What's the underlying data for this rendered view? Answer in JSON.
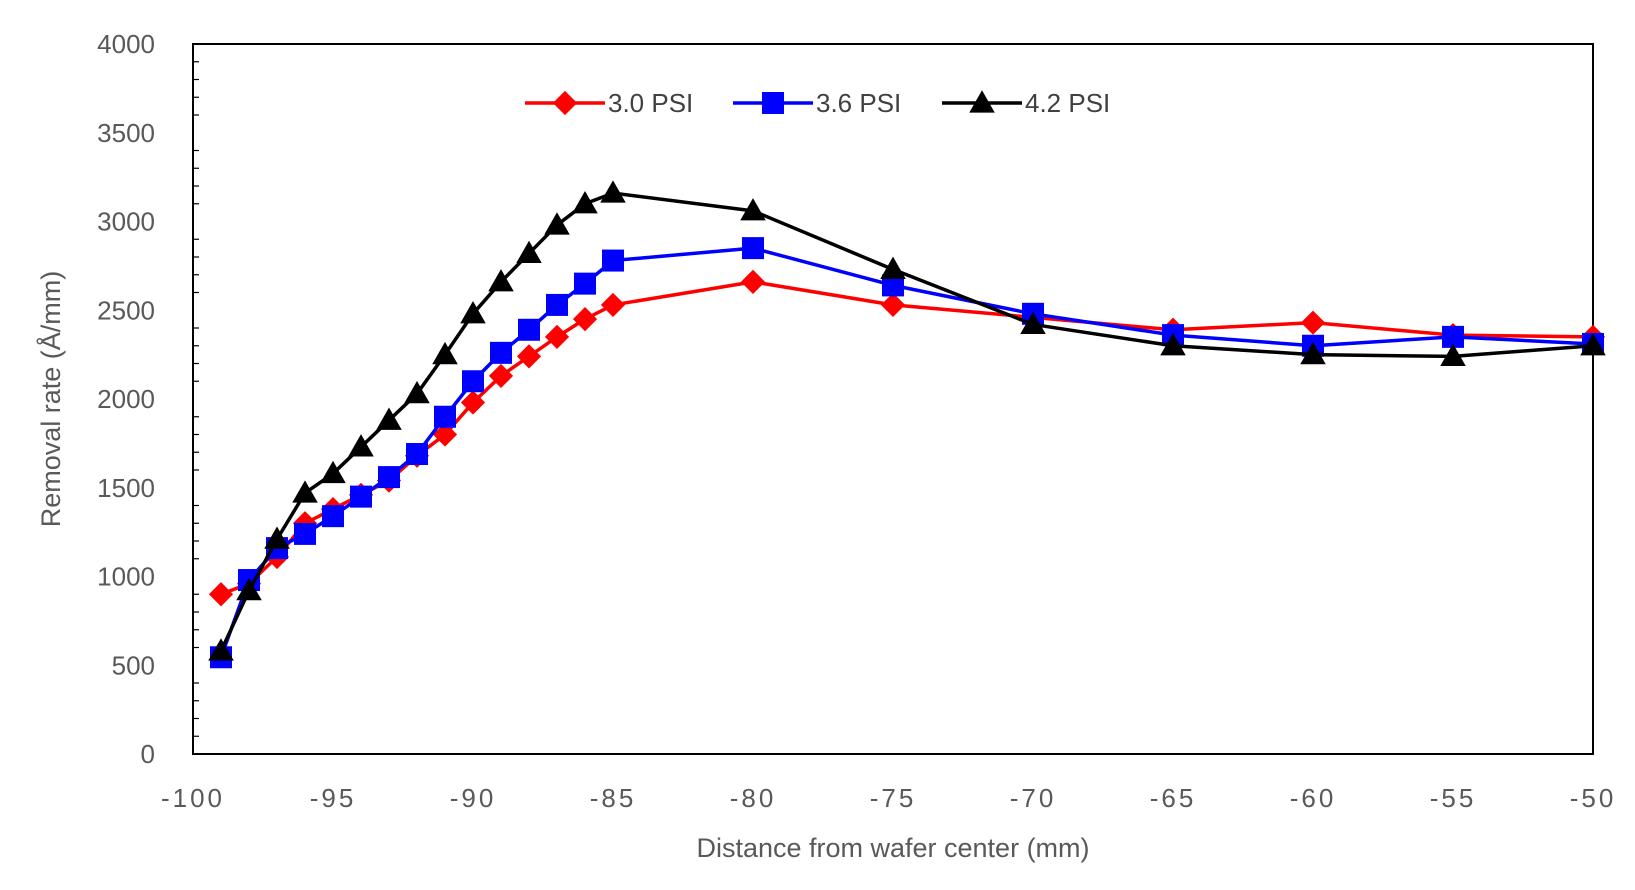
{
  "chart_data": {
    "type": "line",
    "title": "",
    "xlabel": "Distance from wafer center (mm)",
    "ylabel": "Removal rate (Å/mm)",
    "xlim": [
      -100,
      -50
    ],
    "ylim": [
      0,
      4000
    ],
    "x_ticks": [
      "-100",
      "-95",
      "-90",
      "-85",
      "-80",
      "-75",
      "-70",
      "-65",
      "-60",
      "-55",
      "-50"
    ],
    "y_ticks": [
      "0",
      "500",
      "1000",
      "1500",
      "2000",
      "2500",
      "3000",
      "3500",
      "4000"
    ],
    "x_tick_values": [
      -100,
      -95,
      -90,
      -85,
      -80,
      -75,
      -70,
      -65,
      -60,
      -55,
      -50
    ],
    "y_tick_values": [
      0,
      500,
      1000,
      1500,
      2000,
      2500,
      3000,
      3500,
      4000
    ],
    "grid": false,
    "legend_position": "top-center",
    "series": [
      {
        "name": "3.0 PSI",
        "color": "#ff0000",
        "marker": "diamond",
        "x": [
          -99,
          -98,
          -97,
          -96,
          -95,
          -94,
          -93,
          -92,
          -91,
          -90,
          -89,
          -88,
          -87,
          -86,
          -85,
          -80,
          -75,
          -70,
          -65,
          -60,
          -55,
          -50
        ],
        "y": [
          900,
          960,
          1110,
          1300,
          1380,
          1460,
          1540,
          1680,
          1800,
          1980,
          2130,
          2240,
          2350,
          2450,
          2530,
          2660,
          2530,
          2460,
          2390,
          2430,
          2360,
          2350
        ]
      },
      {
        "name": "3.6 PSI",
        "color": "#0000ff",
        "marker": "square",
        "x": [
          -99,
          -98,
          -97,
          -96,
          -95,
          -94,
          -93,
          -92,
          -91,
          -90,
          -89,
          -88,
          -87,
          -86,
          -85,
          -80,
          -75,
          -70,
          -65,
          -60,
          -55,
          -50
        ],
        "y": [
          545,
          980,
          1160,
          1240,
          1340,
          1450,
          1560,
          1690,
          1900,
          2100,
          2260,
          2390,
          2530,
          2650,
          2780,
          2850,
          2640,
          2480,
          2360,
          2300,
          2350,
          2310
        ]
      },
      {
        "name": "4.2 PSI",
        "color": "#000000",
        "marker": "triangle",
        "x": [
          -99,
          -98,
          -97,
          -96,
          -95,
          -94,
          -93,
          -92,
          -91,
          -90,
          -89,
          -88,
          -87,
          -86,
          -85,
          -80,
          -75,
          -70,
          -65,
          -60,
          -55,
          -50
        ],
        "y": [
          580,
          920,
          1210,
          1470,
          1580,
          1730,
          1880,
          2030,
          2250,
          2480,
          2660,
          2820,
          2980,
          3100,
          3160,
          3060,
          2730,
          2420,
          2300,
          2250,
          2240,
          2300
        ]
      }
    ]
  }
}
